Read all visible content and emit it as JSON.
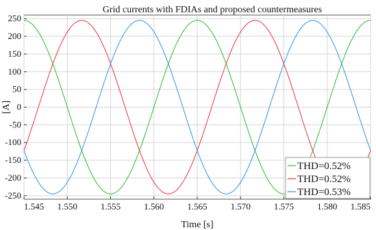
{
  "chart_data": {
    "type": "line",
    "title": "Grid currents with FDIAs and proposed countermeasures",
    "xlabel": "Time [s]",
    "ylabel": "[A]",
    "xlim": [
      1.545,
      1.585
    ],
    "ylim": [
      -260,
      260
    ],
    "xticks": [
      "1.545",
      "1.550",
      "1.555",
      "1.560",
      "1.565",
      "1.570",
      "1.575",
      "1.580",
      "1.585"
    ],
    "yticks": [
      "250",
      "200",
      "150",
      "100",
      "50",
      "0",
      "-50",
      "-100",
      "-150",
      "-200",
      "-250"
    ],
    "grid": true,
    "legend_position": "bottom-right",
    "waveform": {
      "amplitude": 245,
      "frequency_hz": 50
    },
    "series": [
      {
        "name": "THD=0.52%",
        "color": "#2db82d",
        "phase_deg": 0
      },
      {
        "name": "THD=0.52%",
        "color": "#e8303a",
        "phase_deg": -120
      },
      {
        "name": "THD=0.53%",
        "color": "#2f8fe8",
        "phase_deg": 120
      }
    ]
  }
}
